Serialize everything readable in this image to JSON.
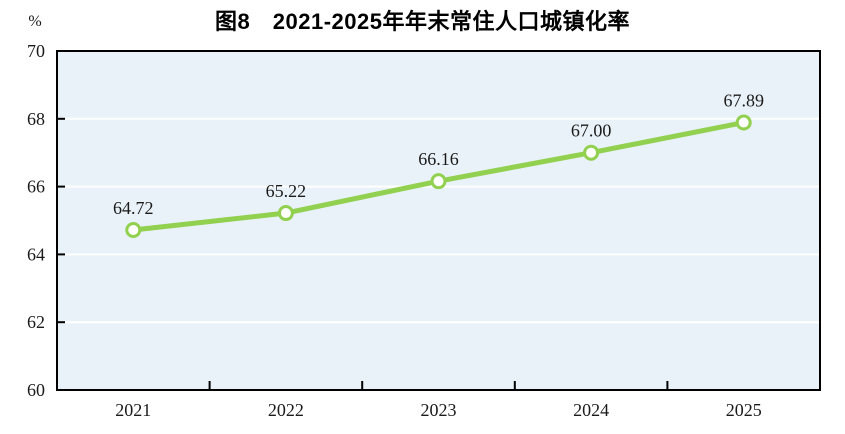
{
  "chart_data": {
    "type": "line",
    "title": "图8　2021-2025年年末常住人口城镇化率",
    "categories": [
      "2021",
      "2022",
      "2023",
      "2024",
      "2025"
    ],
    "values": [
      64.72,
      65.22,
      66.16,
      67.0,
      67.89
    ],
    "value_labels": [
      "64.72",
      "65.22",
      "66.16",
      "67.00",
      "67.89"
    ],
    "xlabel": "",
    "ylabel": "%",
    "ylim": [
      60,
      70
    ],
    "yticks": [
      60,
      62,
      64,
      66,
      68,
      70
    ],
    "grid": true,
    "legend": false,
    "marker": "circle",
    "colors": {
      "line": "#92d050",
      "marker_fill": "#ffffff",
      "marker_stroke": "#92d050",
      "plot_background": "#e9f2f8",
      "gridline": "#ffffff",
      "axis": "#000000",
      "text": "#1a1a1a"
    }
  }
}
